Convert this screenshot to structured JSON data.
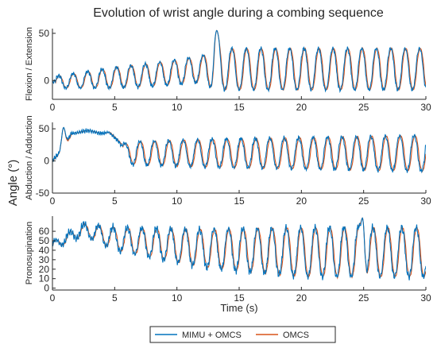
{
  "chart_data": {
    "type": "line",
    "title": "Evolution of wrist angle during a combing sequence",
    "shared_ylabel": "Angle (°)",
    "xlabel": "Time (s)",
    "legend": {
      "placement": "bottom-center",
      "entries": [
        "MIMU + OMCS",
        "OMCS"
      ]
    },
    "series_colors": [
      "#0072BD",
      "#D95319"
    ],
    "panels": [
      {
        "ylabel": "Flexion / Extension",
        "xlim": [
          0,
          30
        ],
        "ylim": [
          -20,
          55
        ],
        "xticks": [
          0,
          5,
          10,
          15,
          20,
          25,
          30
        ],
        "yticks": [
          0,
          50
        ],
        "show_xlabel": false,
        "approx": {
          "base": [
            [
              0,
              -2
            ],
            [
              8,
              6
            ],
            [
              12,
              12
            ],
            [
              30,
              12
            ]
          ],
          "amp": [
            [
              0,
              6
            ],
            [
              5,
              11
            ],
            [
              12,
              14
            ],
            [
              13,
              22
            ],
            [
              30,
              22
            ]
          ],
          "start": 0.2,
          "period": 1.16,
          "phase": 0.0,
          "lag": 0.06,
          "noise": 2.5
        },
        "peaks": [
          [
            13.2,
            53
          ]
        ]
      },
      {
        "ylabel": "Abduction / Adduction",
        "xlim": [
          0,
          30
        ],
        "ylim": [
          -50,
          60
        ],
        "xticks": [
          0,
          5,
          10,
          15,
          20,
          25,
          30
        ],
        "yticks": [
          -50,
          0,
          50
        ],
        "show_xlabel": false,
        "approx": {
          "base": [
            [
              0,
              0
            ],
            [
              0.7,
              10
            ],
            [
              1.5,
              45
            ],
            [
              4.5,
              45
            ],
            [
              6.0,
              12
            ],
            [
              30,
              12
            ]
          ],
          "amp": [
            [
              0,
              8
            ],
            [
              1.2,
              4
            ],
            [
              5.0,
              4
            ],
            [
              6.5,
              18
            ],
            [
              13,
              22
            ],
            [
              30,
              28
            ]
          ],
          "start": 5.6,
          "period": 1.16,
          "phase": 0.2,
          "lag": 0.08,
          "noise": 4.0
        },
        "peaks": [
          [
            0.9,
            52
          ]
        ]
      },
      {
        "ylabel": "Pronosupination",
        "xlim": [
          0,
          30
        ],
        "ylim": [
          -2,
          76
        ],
        "xticks": [
          0,
          5,
          10,
          15,
          20,
          25,
          30
        ],
        "yticks": [
          0,
          10,
          20,
          30,
          40,
          50,
          60
        ],
        "show_xlabel": true,
        "approx": {
          "base": [
            [
              0,
              45
            ],
            [
              2.5,
              62
            ],
            [
              5,
              52
            ],
            [
              12,
              42
            ],
            [
              20,
              38
            ],
            [
              30,
              38
            ]
          ],
          "amp": [
            [
              0,
              4
            ],
            [
              2.5,
              6
            ],
            [
              5,
              12
            ],
            [
              12,
              20
            ],
            [
              20,
              26
            ],
            [
              30,
              26
            ]
          ],
          "start": 0.0,
          "period": 1.16,
          "phase": 0.4,
          "lag": 0.06,
          "noise": 5.0
        },
        "peaks": [
          [
            24.9,
            74
          ]
        ]
      }
    ]
  }
}
